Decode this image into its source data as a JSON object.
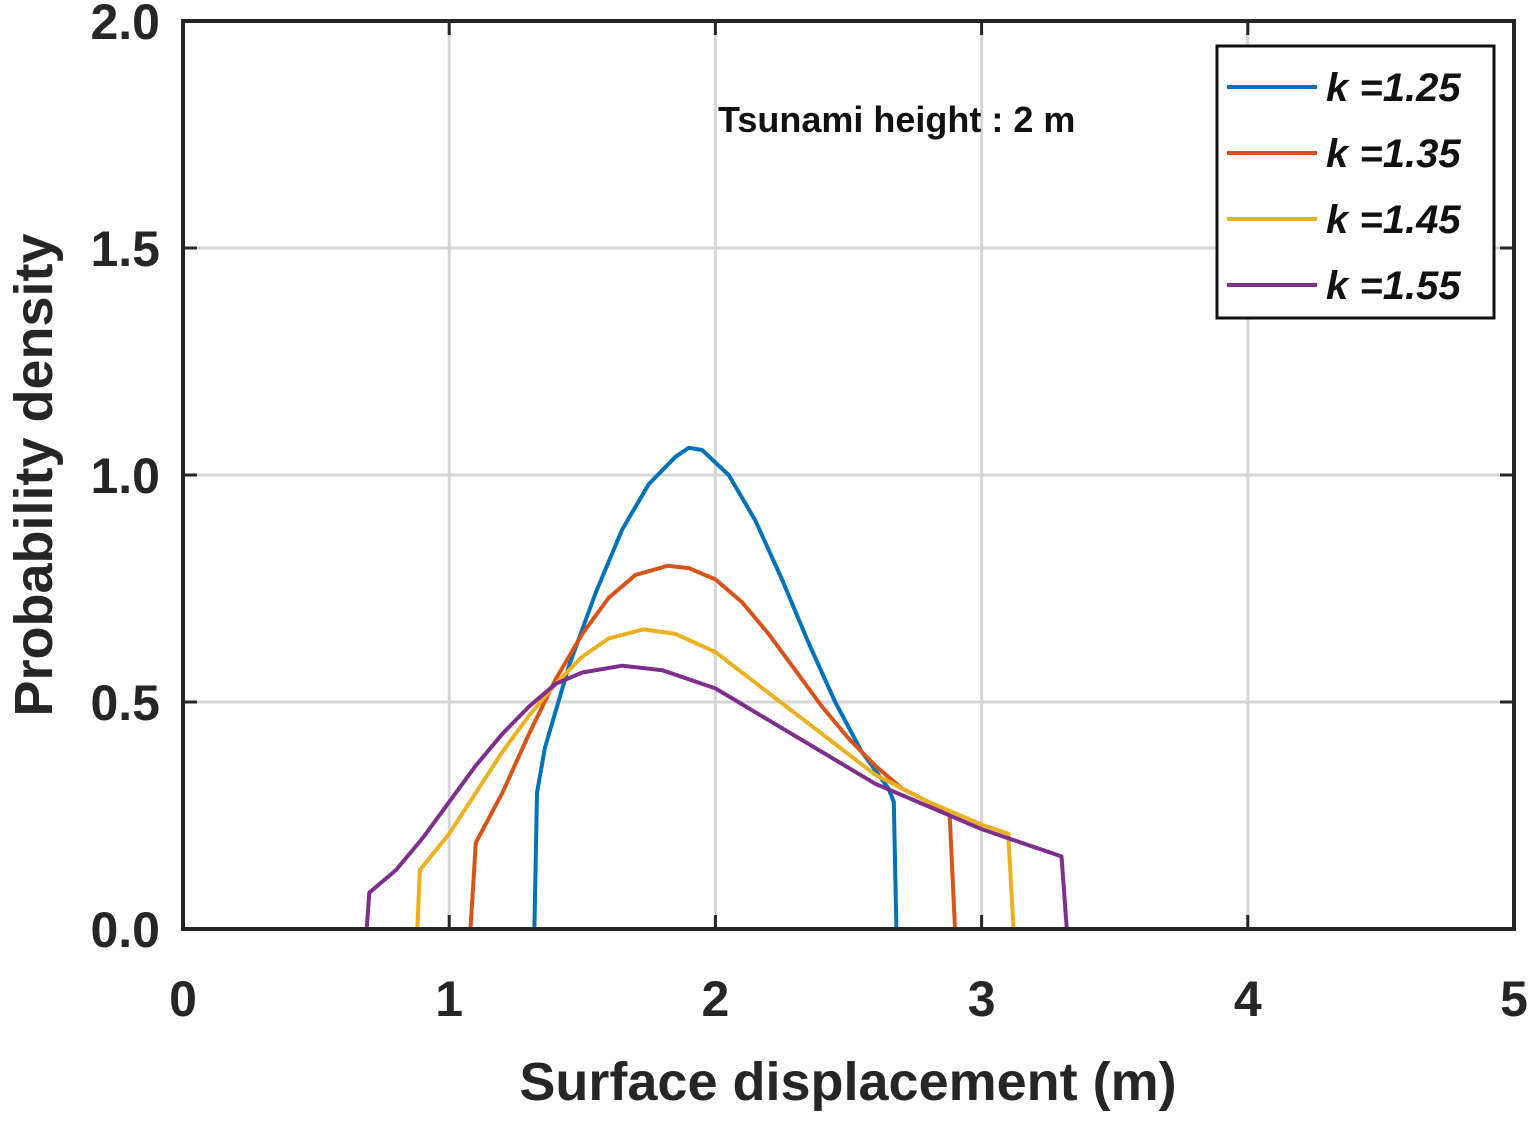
{
  "chart_data": {
    "type": "line",
    "xlabel": "Surface displacement (m)",
    "ylabel": "Probability density",
    "xlim": [
      0,
      5
    ],
    "ylim": [
      0,
      2
    ],
    "xticks": [
      "0",
      "1",
      "2",
      "3",
      "4",
      "5"
    ],
    "yticks": [
      "0.0",
      "0.5",
      "1.0",
      "1.5",
      "2.0"
    ],
    "grid": true,
    "legend_position": "top-right",
    "annotation": "Tsunami height : 2 m",
    "series": [
      {
        "name": "k =1.25",
        "color": "#0072BD",
        "x": [
          0,
          1.32,
          1.33,
          1.36,
          1.45,
          1.55,
          1.65,
          1.75,
          1.85,
          1.9,
          1.95,
          2.05,
          2.15,
          2.25,
          2.35,
          2.45,
          2.55,
          2.65,
          2.67,
          2.68,
          5
        ],
        "y": [
          0,
          0,
          0.3,
          0.4,
          0.58,
          0.74,
          0.88,
          0.98,
          1.04,
          1.06,
          1.055,
          1.0,
          0.9,
          0.77,
          0.63,
          0.5,
          0.39,
          0.31,
          0.28,
          0,
          0
        ]
      },
      {
        "name": "k =1.35",
        "color": "#D95319",
        "x": [
          0,
          1.08,
          1.1,
          1.2,
          1.3,
          1.4,
          1.5,
          1.6,
          1.7,
          1.82,
          1.9,
          2.0,
          2.1,
          2.2,
          2.3,
          2.4,
          2.5,
          2.6,
          2.7,
          2.8,
          2.88,
          2.9,
          5
        ],
        "y": [
          0,
          0,
          0.19,
          0.3,
          0.43,
          0.55,
          0.65,
          0.73,
          0.78,
          0.8,
          0.795,
          0.77,
          0.72,
          0.65,
          0.57,
          0.49,
          0.42,
          0.36,
          0.31,
          0.28,
          0.25,
          0,
          0
        ]
      },
      {
        "name": "k =1.45",
        "color": "#EDB120",
        "x": [
          0,
          0.88,
          0.89,
          1.0,
          1.1,
          1.2,
          1.3,
          1.4,
          1.5,
          1.6,
          1.73,
          1.85,
          2.0,
          2.2,
          2.4,
          2.6,
          2.8,
          3.0,
          3.1,
          3.12,
          5
        ],
        "y": [
          0,
          0,
          0.13,
          0.21,
          0.3,
          0.39,
          0.47,
          0.54,
          0.6,
          0.64,
          0.66,
          0.65,
          0.61,
          0.52,
          0.43,
          0.34,
          0.28,
          0.23,
          0.21,
          0,
          0
        ]
      },
      {
        "name": "k =1.55",
        "color": "#7E2F8E",
        "x": [
          0,
          0.69,
          0.7,
          0.8,
          0.9,
          1.0,
          1.1,
          1.2,
          1.3,
          1.4,
          1.5,
          1.65,
          1.8,
          2.0,
          2.2,
          2.4,
          2.6,
          2.8,
          3.0,
          3.2,
          3.3,
          3.32,
          5
        ],
        "y": [
          0,
          0,
          0.08,
          0.13,
          0.2,
          0.28,
          0.36,
          0.43,
          0.49,
          0.54,
          0.565,
          0.58,
          0.57,
          0.53,
          0.46,
          0.39,
          0.32,
          0.27,
          0.22,
          0.18,
          0.16,
          0,
          0
        ]
      }
    ]
  }
}
